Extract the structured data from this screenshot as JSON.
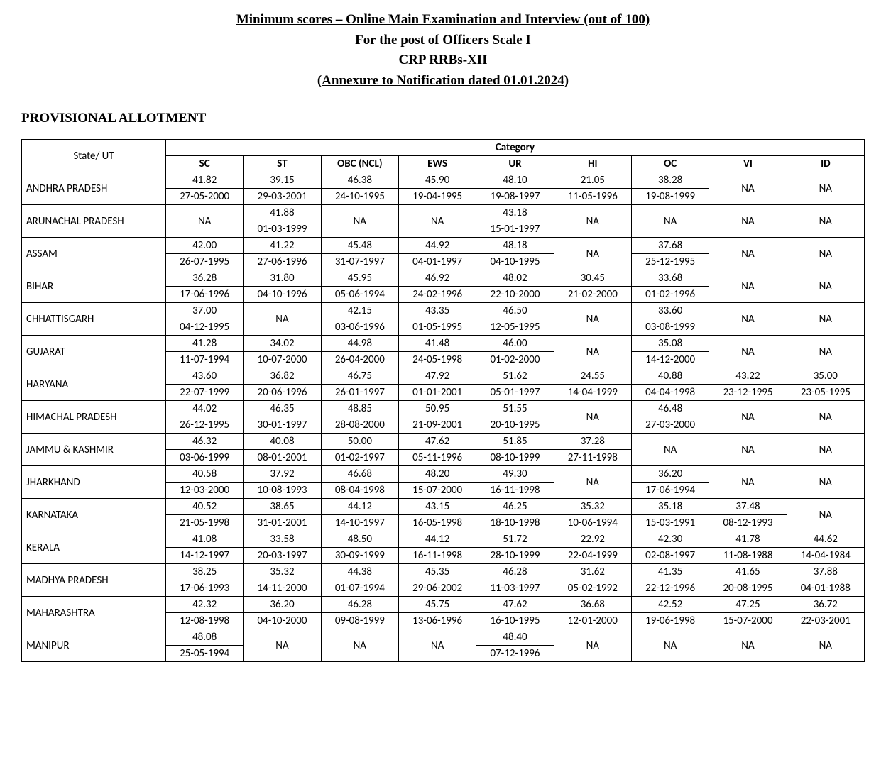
{
  "header": {
    "line1": "Minimum scores – Online Main Examination and Interview (out of 100)",
    "line2": "For the post of Officers Scale I",
    "line3": "CRP RRBs-XII",
    "line4": "(Annexure to Notification dated 01.01.2024)"
  },
  "section_heading": "PROVISIONAL ALLOTMENT",
  "table": {
    "row_header": "State/ UT",
    "group_header": "Category",
    "categories": [
      "SC",
      "ST",
      "OBC (NCL)",
      "EWS",
      "UR",
      "HI",
      "OC",
      "VI",
      "ID"
    ],
    "na_label": "NA",
    "rows": [
      {
        "state": "ANDHRA PRADESH",
        "cells": [
          {
            "score": "41.82",
            "date": "27-05-2000"
          },
          {
            "score": "39.15",
            "date": "29-03-2001"
          },
          {
            "score": "46.38",
            "date": "24-10-1995"
          },
          {
            "score": "45.90",
            "date": "19-04-1995"
          },
          {
            "score": "48.10",
            "date": "19-08-1997"
          },
          {
            "score": "21.05",
            "date": "11-05-1996"
          },
          {
            "score": "38.28",
            "date": "19-08-1999"
          },
          {
            "na": true
          },
          {
            "na": true
          }
        ]
      },
      {
        "state": "ARUNACHAL PRADESH",
        "cells": [
          {
            "na": true
          },
          {
            "score": "41.88",
            "date": "01-03-1999"
          },
          {
            "na": true
          },
          {
            "na": true
          },
          {
            "score": "43.18",
            "date": "15-01-1997"
          },
          {
            "na": true
          },
          {
            "na": true
          },
          {
            "na": true
          },
          {
            "na": true
          }
        ]
      },
      {
        "state": "ASSAM",
        "cells": [
          {
            "score": "42.00",
            "date": "26-07-1995"
          },
          {
            "score": "41.22",
            "date": "27-06-1996"
          },
          {
            "score": "45.48",
            "date": "31-07-1997"
          },
          {
            "score": "44.92",
            "date": "04-01-1997"
          },
          {
            "score": "48.18",
            "date": "04-10-1995"
          },
          {
            "na": true
          },
          {
            "score": "37.68",
            "date": "25-12-1995"
          },
          {
            "na": true
          },
          {
            "na": true
          }
        ]
      },
      {
        "state": "BIHAR",
        "cells": [
          {
            "score": "36.28",
            "date": "17-06-1996"
          },
          {
            "score": "31.80",
            "date": "04-10-1996"
          },
          {
            "score": "45.95",
            "date": "05-06-1994"
          },
          {
            "score": "46.92",
            "date": "24-02-1996"
          },
          {
            "score": "48.02",
            "date": "22-10-2000"
          },
          {
            "score": "30.45",
            "date": "21-02-2000"
          },
          {
            "score": "33.68",
            "date": "01-02-1996"
          },
          {
            "na": true
          },
          {
            "na": true
          }
        ]
      },
      {
        "state": "CHHATTISGARH",
        "cells": [
          {
            "score": "37.00",
            "date": "04-12-1995"
          },
          {
            "na": true
          },
          {
            "score": "42.15",
            "date": "03-06-1996"
          },
          {
            "score": "43.35",
            "date": "01-05-1995"
          },
          {
            "score": "46.50",
            "date": "12-05-1995"
          },
          {
            "na": true
          },
          {
            "score": "33.60",
            "date": "03-08-1999"
          },
          {
            "na": true
          },
          {
            "na": true
          }
        ]
      },
      {
        "state": "GUJARAT",
        "cells": [
          {
            "score": "41.28",
            "date": "11-07-1994"
          },
          {
            "score": "34.02",
            "date": "10-07-2000"
          },
          {
            "score": "44.98",
            "date": "26-04-2000"
          },
          {
            "score": "41.48",
            "date": "24-05-1998"
          },
          {
            "score": "46.00",
            "date": "01-02-2000"
          },
          {
            "na": true
          },
          {
            "score": "35.08",
            "date": "14-12-2000"
          },
          {
            "na": true
          },
          {
            "na": true
          }
        ]
      },
      {
        "state": "HARYANA",
        "cells": [
          {
            "score": "43.60",
            "date": "22-07-1999"
          },
          {
            "score": "36.82",
            "date": "20-06-1996"
          },
          {
            "score": "46.75",
            "date": "26-01-1997"
          },
          {
            "score": "47.92",
            "date": "01-01-2001"
          },
          {
            "score": "51.62",
            "date": "05-01-1997"
          },
          {
            "score": "24.55",
            "date": "14-04-1999"
          },
          {
            "score": "40.88",
            "date": "04-04-1998"
          },
          {
            "score": "43.22",
            "date": "23-12-1995"
          },
          {
            "score": "35.00",
            "date": "23-05-1995"
          }
        ]
      },
      {
        "state": "HIMACHAL PRADESH",
        "cells": [
          {
            "score": "44.02",
            "date": "26-12-1995"
          },
          {
            "score": "46.35",
            "date": "30-01-1997"
          },
          {
            "score": "48.85",
            "date": "28-08-2000"
          },
          {
            "score": "50.95",
            "date": "21-09-2001"
          },
          {
            "score": "51.55",
            "date": "20-10-1995"
          },
          {
            "na": true
          },
          {
            "score": "46.48",
            "date": "27-03-2000"
          },
          {
            "na": true
          },
          {
            "na": true
          }
        ]
      },
      {
        "state": "JAMMU & KASHMIR",
        "cells": [
          {
            "score": "46.32",
            "date": "03-06-1999"
          },
          {
            "score": "40.08",
            "date": "08-01-2001"
          },
          {
            "score": "50.00",
            "date": "01-02-1997"
          },
          {
            "score": "47.62",
            "date": "05-11-1996"
          },
          {
            "score": "51.85",
            "date": "08-10-1999"
          },
          {
            "score": "37.28",
            "date": "27-11-1998"
          },
          {
            "na": true
          },
          {
            "na": true
          },
          {
            "na": true
          }
        ]
      },
      {
        "state": "JHARKHAND",
        "cells": [
          {
            "score": "40.58",
            "date": "12-03-2000"
          },
          {
            "score": "37.92",
            "date": "10-08-1993"
          },
          {
            "score": "46.68",
            "date": "08-04-1998"
          },
          {
            "score": "48.20",
            "date": "15-07-2000"
          },
          {
            "score": "49.30",
            "date": "16-11-1998"
          },
          {
            "na": true
          },
          {
            "score": "36.20",
            "date": "17-06-1994"
          },
          {
            "na": true
          },
          {
            "na": true
          }
        ]
      },
      {
        "state": "KARNATAKA",
        "cells": [
          {
            "score": "40.52",
            "date": "21-05-1998"
          },
          {
            "score": "38.65",
            "date": "31-01-2001"
          },
          {
            "score": "44.12",
            "date": "14-10-1997"
          },
          {
            "score": "43.15",
            "date": "16-05-1998"
          },
          {
            "score": "46.25",
            "date": "18-10-1998"
          },
          {
            "score": "35.32",
            "date": "10-06-1994"
          },
          {
            "score": "35.18",
            "date": "15-03-1991"
          },
          {
            "score": "37.48",
            "date": "08-12-1993"
          },
          {
            "na": true
          }
        ]
      },
      {
        "state": "KERALA",
        "cells": [
          {
            "score": "41.08",
            "date": "14-12-1997"
          },
          {
            "score": "33.58",
            "date": "20-03-1997"
          },
          {
            "score": "48.50",
            "date": "30-09-1999"
          },
          {
            "score": "44.12",
            "date": "16-11-1998"
          },
          {
            "score": "51.72",
            "date": "28-10-1999"
          },
          {
            "score": "22.92",
            "date": "22-04-1999"
          },
          {
            "score": "42.30",
            "date": "02-08-1997"
          },
          {
            "score": "41.78",
            "date": "11-08-1988"
          },
          {
            "score": "44.62",
            "date": "14-04-1984"
          }
        ]
      },
      {
        "state": "MADHYA PRADESH",
        "cells": [
          {
            "score": "38.25",
            "date": "17-06-1993"
          },
          {
            "score": "35.32",
            "date": "14-11-2000"
          },
          {
            "score": "44.38",
            "date": "01-07-1994"
          },
          {
            "score": "45.35",
            "date": "29-06-2002"
          },
          {
            "score": "46.28",
            "date": "11-03-1997"
          },
          {
            "score": "31.62",
            "date": "05-02-1992"
          },
          {
            "score": "41.35",
            "date": "22-12-1996"
          },
          {
            "score": "41.65",
            "date": "20-08-1995"
          },
          {
            "score": "37.88",
            "date": "04-01-1988"
          }
        ]
      },
      {
        "state": "MAHARASHTRA",
        "cells": [
          {
            "score": "42.32",
            "date": "12-08-1998"
          },
          {
            "score": "36.20",
            "date": "04-10-2000"
          },
          {
            "score": "46.28",
            "date": "09-08-1999"
          },
          {
            "score": "45.75",
            "date": "13-06-1996"
          },
          {
            "score": "47.62",
            "date": "16-10-1995"
          },
          {
            "score": "36.68",
            "date": "12-01-2000"
          },
          {
            "score": "42.52",
            "date": "19-06-1998"
          },
          {
            "score": "47.25",
            "date": "15-07-2000"
          },
          {
            "score": "36.72",
            "date": "22-03-2001"
          }
        ]
      },
      {
        "state": "MANIPUR",
        "cells": [
          {
            "score": "48.08",
            "date": "25-05-1994"
          },
          {
            "na": true
          },
          {
            "na": true
          },
          {
            "na": true
          },
          {
            "score": "48.40",
            "date": "07-12-1996"
          },
          {
            "na": true
          },
          {
            "na": true
          },
          {
            "na": true
          },
          {
            "na": true
          }
        ]
      }
    ]
  }
}
